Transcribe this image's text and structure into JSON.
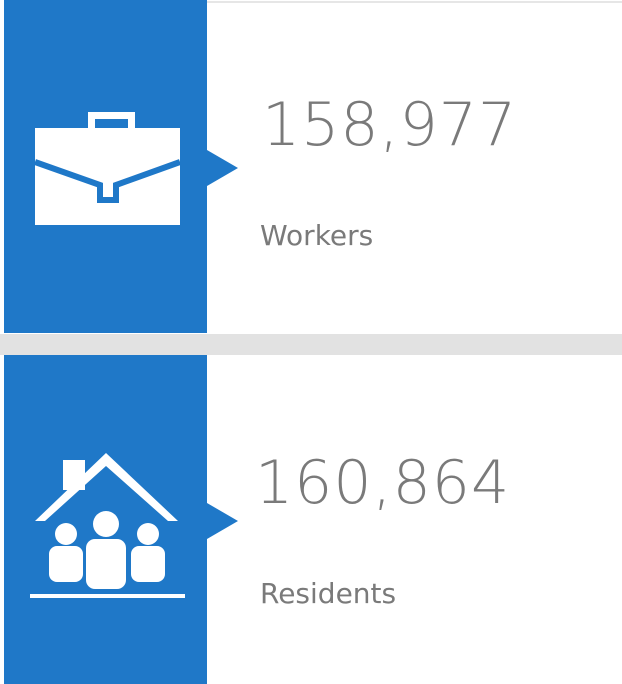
{
  "cards": [
    {
      "value": "158,977",
      "label": "Workers"
    },
    {
      "value": "160,864",
      "label": "Residents"
    }
  ]
}
